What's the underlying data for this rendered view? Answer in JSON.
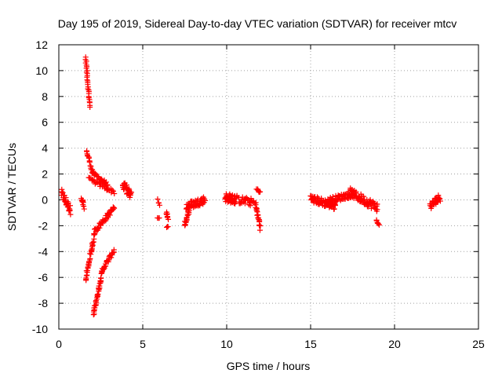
{
  "chart_data": {
    "type": "scatter",
    "title": "Day 195 of 2019, Sidereal Day-to-day VTEC variation (SDTVAR) for receiver mtcv",
    "xlabel": "GPS time / hours",
    "ylabel": "SDTVAR / TECUs",
    "xlim": [
      0,
      25
    ],
    "ylim": [
      -10,
      12
    ],
    "xticks": [
      0,
      5,
      10,
      15,
      20,
      25
    ],
    "yticks": [
      -10,
      -8,
      -6,
      -4,
      -2,
      0,
      2,
      4,
      6,
      8,
      10,
      12
    ],
    "grid": true,
    "marker": "plus",
    "color": "#ff0000",
    "segments": [
      {
        "x0": 0.15,
        "x1": 0.7,
        "y0": 0.5,
        "y1": -0.8,
        "n": 30,
        "jitter": 0.35
      },
      {
        "x0": 1.35,
        "x1": 1.5,
        "y0": 0.3,
        "y1": -0.6,
        "n": 10,
        "jitter": 0.25
      },
      {
        "x0": 1.6,
        "x1": 1.85,
        "y0": 11.0,
        "y1": 7.2,
        "n": 28,
        "jitter": 0.05
      },
      {
        "x0": 1.65,
        "x1": 2.0,
        "y0": 3.8,
        "y1": 2.2,
        "n": 16,
        "jitter": 0.1
      },
      {
        "x0": 2.0,
        "x1": 2.9,
        "y0": 2.1,
        "y1": 1.2,
        "n": 26,
        "jitter": 0.12
      },
      {
        "x0": 1.8,
        "x1": 3.3,
        "y0": 1.6,
        "y1": 0.6,
        "n": 30,
        "jitter": 0.15
      },
      {
        "x0": 1.6,
        "x1": 2.1,
        "y0": -6.2,
        "y1": -2.8,
        "n": 34,
        "jitter": 0.2
      },
      {
        "x0": 2.1,
        "x1": 3.3,
        "y0": -2.5,
        "y1": -0.6,
        "n": 44,
        "jitter": 0.2
      },
      {
        "x0": 2.05,
        "x1": 2.6,
        "y0": -8.9,
        "y1": -5.5,
        "n": 40,
        "jitter": 0.15
      },
      {
        "x0": 2.6,
        "x1": 3.3,
        "y0": -5.4,
        "y1": -3.9,
        "n": 26,
        "jitter": 0.15
      },
      {
        "x0": 3.8,
        "x1": 4.3,
        "y0": 1.2,
        "y1": 0.3,
        "n": 30,
        "jitter": 0.35
      },
      {
        "x0": 5.9,
        "x1": 6.0,
        "y0": 0.0,
        "y1": -0.4,
        "n": 4,
        "jitter": 0.1
      },
      {
        "x0": 5.9,
        "x1": 6.0,
        "y0": -1.4,
        "y1": -1.4,
        "n": 3,
        "jitter": 0.05
      },
      {
        "x0": 6.4,
        "x1": 6.5,
        "y0": -1.0,
        "y1": -1.4,
        "n": 8,
        "jitter": 0.15
      },
      {
        "x0": 6.4,
        "x1": 6.5,
        "y0": -2.1,
        "y1": -2.1,
        "n": 3,
        "jitter": 0.05
      },
      {
        "x0": 7.5,
        "x1": 7.8,
        "y0": -1.9,
        "y1": -0.5,
        "n": 24,
        "jitter": 0.25
      },
      {
        "x0": 7.6,
        "x1": 8.7,
        "y0": -0.5,
        "y1": 0.0,
        "n": 50,
        "jitter": 0.3
      },
      {
        "x0": 9.9,
        "x1": 10.6,
        "y0": 0.2,
        "y1": 0.0,
        "n": 46,
        "jitter": 0.35
      },
      {
        "x0": 10.7,
        "x1": 11.6,
        "y0": 0.0,
        "y1": -0.2,
        "n": 28,
        "jitter": 0.3
      },
      {
        "x0": 11.8,
        "x1": 12.0,
        "y0": 0.8,
        "y1": 0.6,
        "n": 8,
        "jitter": 0.1
      },
      {
        "x0": 11.7,
        "x1": 12.0,
        "y0": -0.3,
        "y1": -2.1,
        "n": 22,
        "jitter": 0.25
      },
      {
        "x0": 15.0,
        "x1": 16.5,
        "y0": 0.1,
        "y1": -0.5,
        "n": 70,
        "jitter": 0.3
      },
      {
        "x0": 16.0,
        "x1": 17.6,
        "y0": -0.1,
        "y1": 0.5,
        "n": 60,
        "jitter": 0.25
      },
      {
        "x0": 17.3,
        "x1": 19.0,
        "y0": 0.6,
        "y1": -0.6,
        "n": 70,
        "jitter": 0.35
      },
      {
        "x0": 18.9,
        "x1": 19.1,
        "y0": -1.6,
        "y1": -1.9,
        "n": 6,
        "jitter": 0.08
      },
      {
        "x0": 22.1,
        "x1": 22.7,
        "y0": -0.5,
        "y1": 0.2,
        "n": 30,
        "jitter": 0.3
      }
    ]
  }
}
